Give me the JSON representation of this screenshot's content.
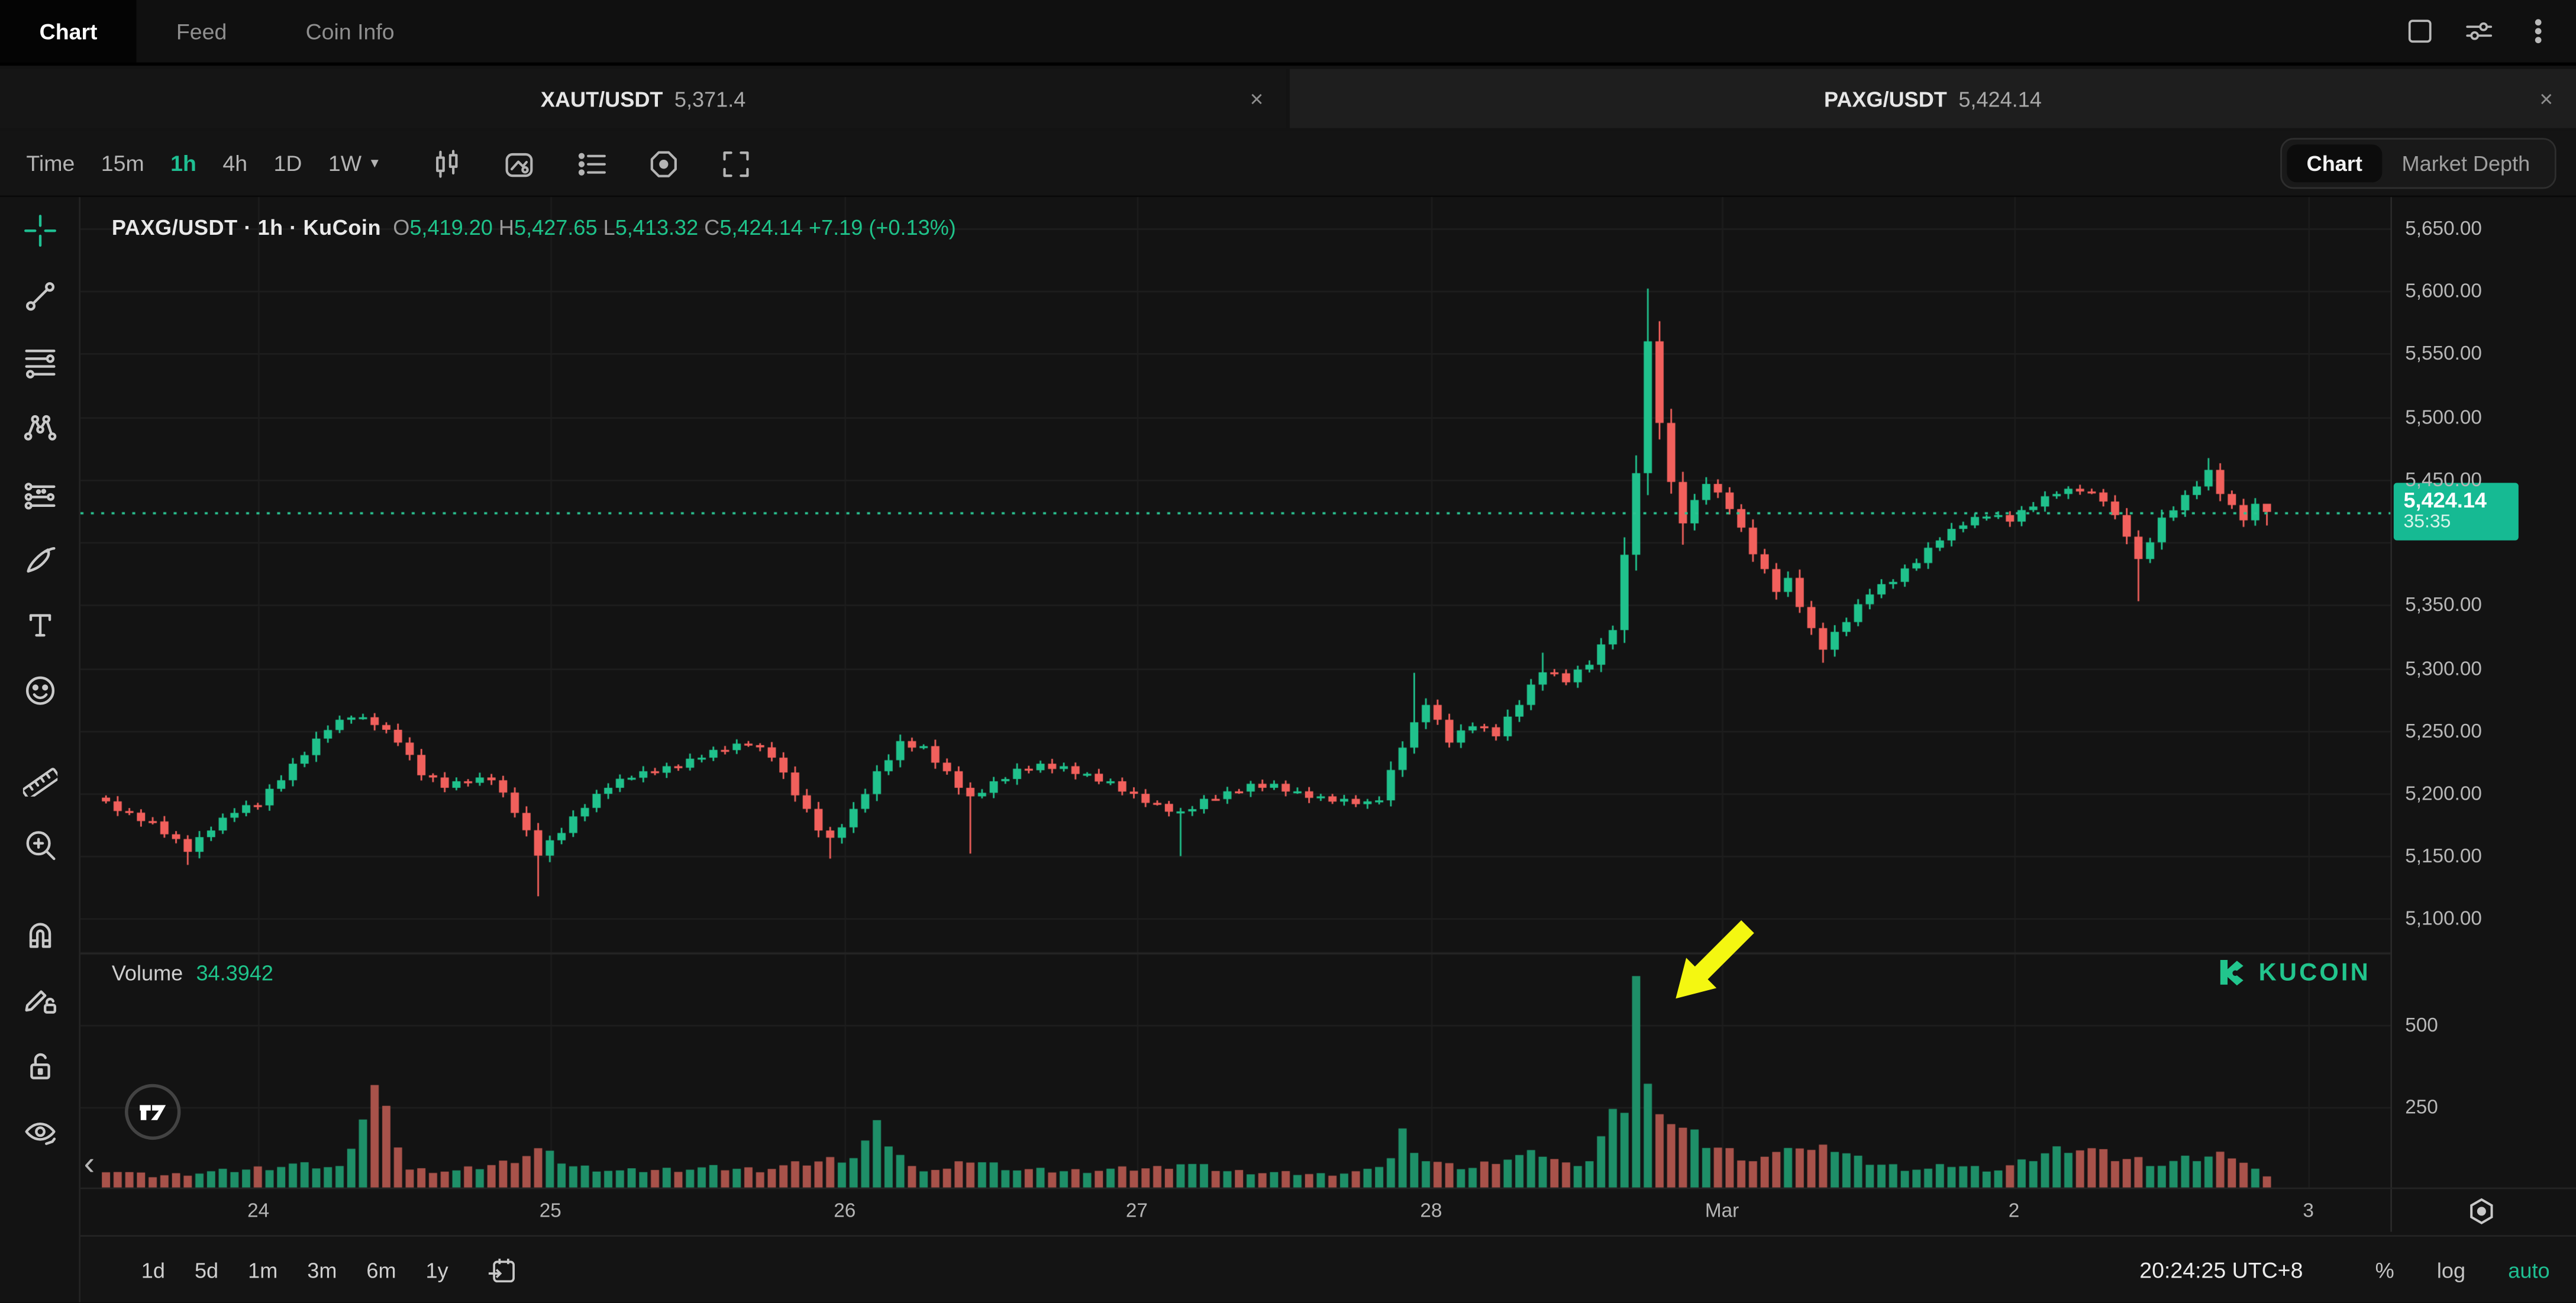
{
  "header": {
    "tabs": [
      {
        "label": "Chart",
        "active": true
      },
      {
        "label": "Feed",
        "active": false
      },
      {
        "label": "Coin Info",
        "active": false
      }
    ],
    "window_icons": [
      "maximize-icon",
      "sliders-icon",
      "kebab-menu-icon"
    ]
  },
  "symbol_tabs": [
    {
      "symbol": "XAUT/USDT",
      "price": "5,371.4",
      "close_label": "×",
      "active": false
    },
    {
      "symbol": "PAXG/USDT",
      "price": "5,424.14",
      "close_label": "×",
      "active": true
    }
  ],
  "toolbar": {
    "intervals": [
      {
        "label": "Time",
        "active": false,
        "caret": false
      },
      {
        "label": "15m",
        "active": false,
        "caret": false
      },
      {
        "label": "1h",
        "active": true,
        "caret": false
      },
      {
        "label": "4h",
        "active": false,
        "caret": false
      },
      {
        "label": "1D",
        "active": false,
        "caret": false
      },
      {
        "label": "1W",
        "active": false,
        "caret": true
      }
    ],
    "icons": [
      "candle-style-icon",
      "snapshot-icon",
      "indicator-list-icon",
      "target-icon",
      "fullscreen-icon"
    ],
    "right_toggle": [
      {
        "label": "Chart",
        "active": true
      },
      {
        "label": "Market Depth",
        "active": false
      }
    ]
  },
  "sidebar": {
    "tools": [
      {
        "icon": "crosshair-icon",
        "green": true,
        "gap": false
      },
      {
        "icon": "trend-line-icon",
        "green": false,
        "gap": false
      },
      {
        "icon": "fib-lines-icon",
        "green": false,
        "gap": false
      },
      {
        "icon": "xabcd-pattern-icon",
        "green": false,
        "gap": false
      },
      {
        "icon": "projection-icon",
        "green": false,
        "gap": false
      },
      {
        "icon": "brush-icon",
        "green": false,
        "gap": false
      },
      {
        "icon": "text-icon",
        "green": false,
        "gap": false
      },
      {
        "icon": "emoji-icon",
        "green": false,
        "gap": false
      },
      {
        "icon": "ruler-icon",
        "green": false,
        "gap": true
      },
      {
        "icon": "zoom-in-icon",
        "green": false,
        "gap": false
      },
      {
        "icon": "magnet-icon",
        "green": false,
        "gap": true
      },
      {
        "icon": "edit-lock-icon",
        "green": false,
        "gap": false
      },
      {
        "icon": "unlock-icon",
        "green": false,
        "gap": false
      },
      {
        "icon": "eye-icon",
        "green": false,
        "gap": false
      }
    ],
    "scroll_back_label": "‹"
  },
  "chart_header": {
    "title": "PAXG/USDT · 1h · KuCoin",
    "o_label": "O",
    "o": "5,419.20",
    "h_label": "H",
    "h": "5,427.65",
    "l_label": "L",
    "l": "5,413.32",
    "c_label": "C",
    "c": "5,424.14",
    "change": "+7.19 (+0.13%)"
  },
  "volume_legend": {
    "label": "Volume",
    "value": "34.3942"
  },
  "watermark": {
    "text": "KUCOIN"
  },
  "price_axis": {
    "ticks": [
      "5,650.00",
      "5,600.00",
      "5,550.00",
      "5,500.00",
      "5,450.00",
      "5,350.00",
      "5,300.00",
      "5,250.00",
      "5,200.00",
      "5,150.00",
      "5,100.00"
    ],
    "badge": {
      "price": "5,424.14",
      "countdown": "35:35"
    }
  },
  "volume_axis": {
    "ticks": [
      "500",
      "250"
    ]
  },
  "bottom_bar": {
    "ranges": [
      "1d",
      "5d",
      "1m",
      "3m",
      "6m",
      "1y"
    ],
    "clock": "20:24:25 UTC+8",
    "percent": "%",
    "log": "log",
    "auto": "auto"
  },
  "annotation": {
    "type": "arrow",
    "color": "#f4f711",
    "points_at": "volume-spike"
  },
  "colors": {
    "up": "#20c18c",
    "down": "#f1605c",
    "vol_up": "#1e8f68",
    "vol_down": "#a8524a",
    "accent": "#1fbf92",
    "badge": "#16ba93",
    "grid": "#1d1d1d",
    "vgrid": "#1b1b1b",
    "price_line": "#2bc492",
    "divider": "#242424",
    "background": "#131313"
  },
  "chart_data": {
    "type": "candlestick",
    "symbol": "PAXG/USDT",
    "interval": "1h",
    "exchange": "KuCoin",
    "last_bar": {
      "open": 5419.2,
      "high": 5427.65,
      "low": 5413.32,
      "close": 5424.14,
      "change": 7.19,
      "change_pct": 0.13
    },
    "current_volume": 34.3942,
    "price_line": 5424.14,
    "candles_count": 186,
    "y_ticks": [
      5650,
      5600,
      5550,
      5500,
      5450,
      5350,
      5300,
      5250,
      5200,
      5150,
      5100
    ],
    "grid_prices": [
      5650,
      5600,
      5550,
      5500,
      5450,
      5400,
      5350,
      5300,
      5250,
      5200,
      5150,
      5100
    ],
    "volume_ticks": [
      500,
      250
    ],
    "x_labels": [
      [
        "24",
        13.4
      ],
      [
        "25",
        38.4
      ],
      [
        "26",
        63.6
      ],
      [
        "27",
        88.6
      ],
      [
        "28",
        113.8
      ],
      [
        "Mar",
        138.7
      ],
      [
        "2",
        163.7
      ],
      [
        "3",
        188.9
      ]
    ],
    "close_waypoints": [
      [
        0,
        5192
      ],
      [
        2,
        5183
      ],
      [
        4,
        5176
      ],
      [
        6,
        5162
      ],
      [
        7,
        5155
      ],
      [
        9,
        5172
      ],
      [
        11,
        5186
      ],
      [
        13,
        5192
      ],
      [
        15,
        5212
      ],
      [
        17,
        5232
      ],
      [
        19,
        5252
      ],
      [
        21,
        5262
      ],
      [
        23,
        5256
      ],
      [
        25,
        5242
      ],
      [
        27,
        5216
      ],
      [
        29,
        5206
      ],
      [
        31,
        5210
      ],
      [
        33,
        5212
      ],
      [
        35,
        5186
      ],
      [
        37,
        5152
      ],
      [
        39,
        5170
      ],
      [
        41,
        5190
      ],
      [
        43,
        5206
      ],
      [
        45,
        5214
      ],
      [
        47,
        5218
      ],
      [
        49,
        5222
      ],
      [
        51,
        5230
      ],
      [
        53,
        5236
      ],
      [
        55,
        5240
      ],
      [
        57,
        5230
      ],
      [
        59,
        5200
      ],
      [
        61,
        5172
      ],
      [
        62,
        5163
      ],
      [
        64,
        5186
      ],
      [
        66,
        5216
      ],
      [
        68,
        5240
      ],
      [
        70,
        5236
      ],
      [
        72,
        5216
      ],
      [
        74,
        5196
      ],
      [
        76,
        5208
      ],
      [
        78,
        5218
      ],
      [
        80,
        5222
      ],
      [
        82,
        5220
      ],
      [
        84,
        5214
      ],
      [
        86,
        5208
      ],
      [
        88,
        5198
      ],
      [
        90,
        5190
      ],
      [
        92,
        5184
      ],
      [
        94,
        5194
      ],
      [
        96,
        5200
      ],
      [
        98,
        5206
      ],
      [
        100,
        5206
      ],
      [
        102,
        5200
      ],
      [
        104,
        5196
      ],
      [
        106,
        5194
      ],
      [
        108,
        5192
      ],
      [
        109,
        5196
      ],
      [
        111,
        5238
      ],
      [
        113,
        5272
      ],
      [
        115,
        5242
      ],
      [
        117,
        5255
      ],
      [
        119,
        5247
      ],
      [
        121,
        5272
      ],
      [
        123,
        5298
      ],
      [
        125,
        5290
      ],
      [
        127,
        5304
      ],
      [
        129,
        5330
      ],
      [
        130,
        5390
      ],
      [
        131,
        5455
      ],
      [
        132,
        5560
      ],
      [
        133,
        5495
      ],
      [
        134,
        5448
      ],
      [
        135,
        5415
      ],
      [
        136,
        5432
      ],
      [
        137,
        5448
      ],
      [
        139,
        5428
      ],
      [
        141,
        5392
      ],
      [
        143,
        5362
      ],
      [
        144,
        5370
      ],
      [
        146,
        5330
      ],
      [
        147,
        5316
      ],
      [
        149,
        5338
      ],
      [
        151,
        5360
      ],
      [
        153,
        5370
      ],
      [
        155,
        5385
      ],
      [
        157,
        5403
      ],
      [
        159,
        5415
      ],
      [
        161,
        5422
      ],
      [
        163,
        5418
      ],
      [
        165,
        5430
      ],
      [
        167,
        5440
      ],
      [
        169,
        5442
      ],
      [
        171,
        5434
      ],
      [
        173,
        5406
      ],
      [
        174,
        5385
      ],
      [
        176,
        5418
      ],
      [
        178,
        5436
      ],
      [
        180,
        5456
      ],
      [
        181,
        5440
      ],
      [
        182,
        5428
      ],
      [
        183,
        5419
      ],
      [
        184,
        5429
      ],
      [
        185,
        5424.14
      ]
    ],
    "wick_overrides": {
      "7": {
        "low": 5143
      },
      "37": {
        "low": 5118
      },
      "62": {
        "low": 5148
      },
      "74": {
        "low": 5152
      },
      "92": {
        "low": 5150
      },
      "112": {
        "high": 5296
      },
      "123": {
        "high": 5312
      },
      "132": {
        "high": 5602
      },
      "133": {
        "high": 5576
      },
      "135": {
        "low": 5398
      },
      "147": {
        "low": 5304
      },
      "174": {
        "low": 5353
      },
      "180": {
        "high": 5467
      }
    },
    "volume_anchors": [
      [
        0,
        55
      ],
      [
        4,
        35
      ],
      [
        8,
        45
      ],
      [
        12,
        55
      ],
      [
        16,
        70
      ],
      [
        20,
        60
      ],
      [
        23,
        300
      ],
      [
        26,
        55
      ],
      [
        30,
        50
      ],
      [
        34,
        75
      ],
      [
        37,
        115
      ],
      [
        40,
        65
      ],
      [
        44,
        50
      ],
      [
        48,
        55
      ],
      [
        52,
        60
      ],
      [
        56,
        55
      ],
      [
        60,
        75
      ],
      [
        64,
        95
      ],
      [
        66,
        180
      ],
      [
        69,
        60
      ],
      [
        72,
        55
      ],
      [
        74,
        85
      ],
      [
        78,
        55
      ],
      [
        82,
        50
      ],
      [
        86,
        55
      ],
      [
        90,
        60
      ],
      [
        92,
        75
      ],
      [
        96,
        50
      ],
      [
        100,
        45
      ],
      [
        104,
        40
      ],
      [
        108,
        50
      ],
      [
        110,
        90
      ],
      [
        111,
        165
      ],
      [
        113,
        85
      ],
      [
        115,
        65
      ],
      [
        117,
        60
      ],
      [
        119,
        85
      ],
      [
        121,
        95
      ],
      [
        123,
        105
      ],
      [
        125,
        70
      ],
      [
        127,
        85
      ],
      [
        128,
        150
      ],
      [
        129,
        210
      ],
      [
        130,
        255
      ],
      [
        131,
        650
      ],
      [
        132,
        290
      ],
      [
        133,
        265
      ],
      [
        134,
        205
      ],
      [
        135,
        175
      ],
      [
        136,
        155
      ],
      [
        137,
        135
      ],
      [
        139,
        110
      ],
      [
        141,
        85
      ],
      [
        143,
        95
      ],
      [
        144,
        135
      ],
      [
        146,
        105
      ],
      [
        147,
        155
      ],
      [
        148,
        115
      ],
      [
        150,
        85
      ],
      [
        152,
        70
      ],
      [
        154,
        60
      ],
      [
        156,
        55
      ],
      [
        158,
        70
      ],
      [
        160,
        60
      ],
      [
        162,
        55
      ],
      [
        164,
        75
      ],
      [
        166,
        105
      ],
      [
        168,
        125
      ],
      [
        170,
        115
      ],
      [
        172,
        90
      ],
      [
        174,
        85
      ],
      [
        176,
        70
      ],
      [
        178,
        85
      ],
      [
        180,
        95
      ],
      [
        182,
        105
      ],
      [
        184,
        55
      ],
      [
        185,
        34
      ]
    ],
    "volume_spike_index": 131
  }
}
